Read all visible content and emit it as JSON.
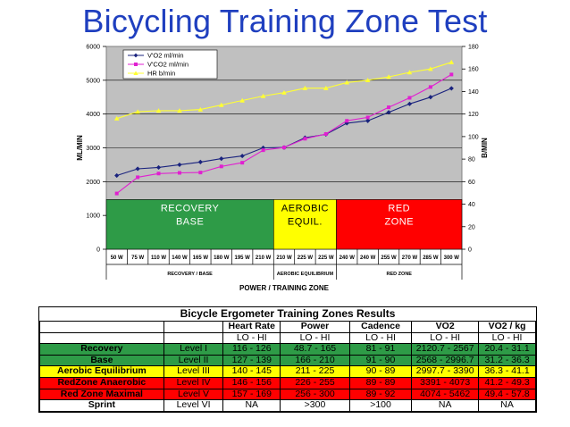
{
  "title": "Bicycling Training Zone Test",
  "chart_data": {
    "type": "line",
    "categories": [
      "50 W",
      "75 W",
      "110 W",
      "140 W",
      "165 W",
      "180 W",
      "195 W",
      "210 W",
      "210 W",
      "225 W",
      "225 W",
      "240 W",
      "240 W",
      "255 W",
      "270 W",
      "285 W",
      "300 W"
    ],
    "groups": [
      {
        "label": "RECOVERY / BASE",
        "start": 0,
        "end": 7
      },
      {
        "label": "AEROBIC EQUILIBRIUM",
        "start": 8,
        "end": 10
      },
      {
        "label": "RED ZONE",
        "start": 11,
        "end": 16
      }
    ],
    "xlabel": "POWER / TRAINING ZONE",
    "ylabel": "ML/MIN",
    "y2label": "B/MIN",
    "ylim": [
      0,
      6000
    ],
    "yticks": [
      0,
      1000,
      2000,
      3000,
      4000,
      5000,
      6000
    ],
    "y2lim": [
      0,
      180
    ],
    "y2ticks": [
      0,
      20,
      40,
      60,
      80,
      100,
      120,
      140,
      160,
      180
    ],
    "legend_position": "top-left",
    "series": [
      {
        "name": "V'O2 ml/min",
        "axis": "left",
        "color": "#1a237e",
        "marker": "diamond",
        "values": [
          2180,
          2380,
          2420,
          2500,
          2580,
          2680,
          2760,
          3000,
          3010,
          3300,
          3400,
          3730,
          3800,
          4050,
          4300,
          4500,
          4760
        ]
      },
      {
        "name": "V'CO2 ml/min",
        "axis": "left",
        "color": "#e020d0",
        "marker": "square",
        "values": [
          1650,
          2130,
          2240,
          2260,
          2270,
          2450,
          2560,
          2930,
          3010,
          3270,
          3410,
          3800,
          3900,
          4200,
          4480,
          4800,
          5170
        ]
      },
      {
        "name": "HR b/min",
        "axis": "right",
        "color": "#ffff33",
        "marker": "triangle",
        "values": [
          116,
          122,
          123,
          123,
          124,
          128,
          132,
          136,
          139,
          143,
          143,
          148,
          150,
          153,
          157,
          160,
          166
        ]
      }
    ],
    "bands": [
      {
        "label": "RECOVERY\nBASE",
        "start": 0,
        "end": 7,
        "color": "#2e9b47",
        "text_color": "#ffffff"
      },
      {
        "label": "AEROBIC\nEQUIL.",
        "start": 8,
        "end": 10,
        "color": "#ffff00",
        "text_color": "#000000"
      },
      {
        "label": "RED\nZONE",
        "start": 11,
        "end": 16,
        "color": "#ff0000",
        "text_color": "#ffffff"
      }
    ],
    "band_range": [
      0,
      1470
    ]
  },
  "table": {
    "title": "Bicycle Ergometer Training Zones Results",
    "headers": [
      "",
      "",
      "Heart Rate",
      "Power",
      "Cadence",
      "VO2",
      "VO2 / kg"
    ],
    "subheaders": [
      "",
      "",
      "LO  -  HI",
      "LO  -  HI",
      "LO  -  HI",
      "LO  -  HI",
      "LO  -  HI"
    ],
    "rows": [
      {
        "zone": "Recovery",
        "level": "Level I",
        "hr": "116 - 126",
        "power": "48.7 - 165",
        "cadence": "81 - 91",
        "vo2": "2120.7 - 2567",
        "vo2kg": "20.4 - 31.1"
      },
      {
        "zone": "Base",
        "level": "Level II",
        "hr": "127 - 139",
        "power": "166 - 210",
        "cadence": "91 - 90",
        "vo2": "2568 - 2996.7",
        "vo2kg": "31.2 - 36.3"
      },
      {
        "zone": "Aerobic Equilibrium",
        "level": "Level III",
        "hr": "140 - 145",
        "power": "211 - 225",
        "cadence": "90 - 89",
        "vo2": "2997.7 - 3390",
        "vo2kg": "36.3 - 41.1"
      },
      {
        "zone": "RedZone Anaerobic",
        "level": "Level IV",
        "hr": "146 - 156",
        "power": "226 - 255",
        "cadence": "89 - 89",
        "vo2": "3391 - 4073",
        "vo2kg": "41.2 - 49.3"
      },
      {
        "zone": "Red Zone Maximal",
        "level": "Level V",
        "hr": "157 - 169",
        "power": "256 - 300",
        "cadence": "89 - 92",
        "vo2": "4074 - 5462",
        "vo2kg": "49.4 - 57.8"
      },
      {
        "zone": "Sprint",
        "level": "Level VI",
        "hr": "NA",
        "power": ">300",
        "cadence": ">100",
        "vo2": "NA",
        "vo2kg": "NA"
      }
    ]
  }
}
